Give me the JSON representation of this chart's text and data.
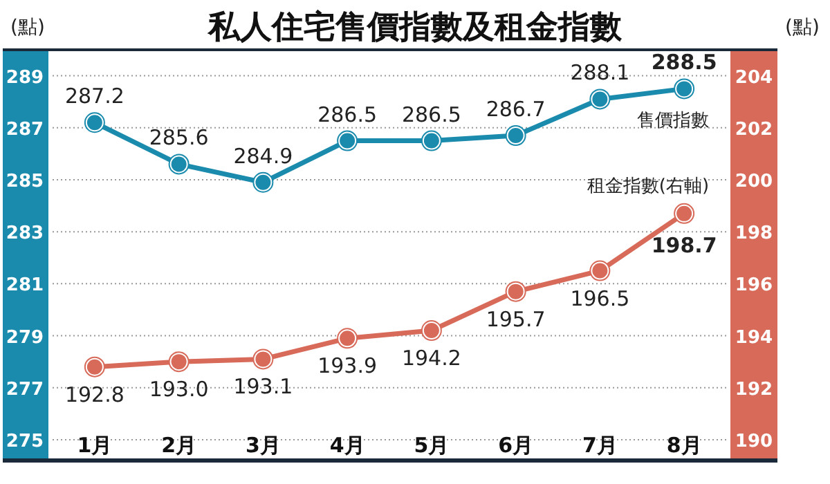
{
  "chart_data": {
    "type": "line",
    "title": "私人住宅售價指數及租金指數",
    "ylabel": "(點)",
    "y2label": "(點)",
    "categories": [
      "1月",
      "2月",
      "3月",
      "4月",
      "5月",
      "6月",
      "7月",
      "8月"
    ],
    "series": [
      {
        "name": "售價指數",
        "color": "#1b8bad",
        "values": [
          287.2,
          285.6,
          284.9,
          286.5,
          286.5,
          286.7,
          288.1,
          288.5
        ],
        "value_labels": [
          "287.2",
          "285.6",
          "284.9",
          "286.5",
          "286.5",
          "286.7",
          "288.1",
          "288.5"
        ]
      },
      {
        "name": "租金指數(右軸)",
        "color": "#d86a5a",
        "axis": "y2",
        "values": [
          192.8,
          193.0,
          193.1,
          193.9,
          194.2,
          195.7,
          196.5,
          198.7
        ],
        "value_labels": [
          "192.8",
          "193.0",
          "193.1",
          "193.9",
          "194.2",
          "195.7",
          "196.5",
          "198.7"
        ]
      }
    ],
    "ylim": [
      274.2,
      290
    ],
    "yticks": [
      275,
      277,
      279,
      281,
      283,
      285,
      287,
      289
    ],
    "y2lim": [
      189.2,
      205
    ],
    "y2ticks": [
      190,
      192,
      194,
      196,
      198,
      200,
      202,
      204
    ],
    "grid": "y",
    "legend": false,
    "marker": "circle",
    "line_style": "solid"
  }
}
